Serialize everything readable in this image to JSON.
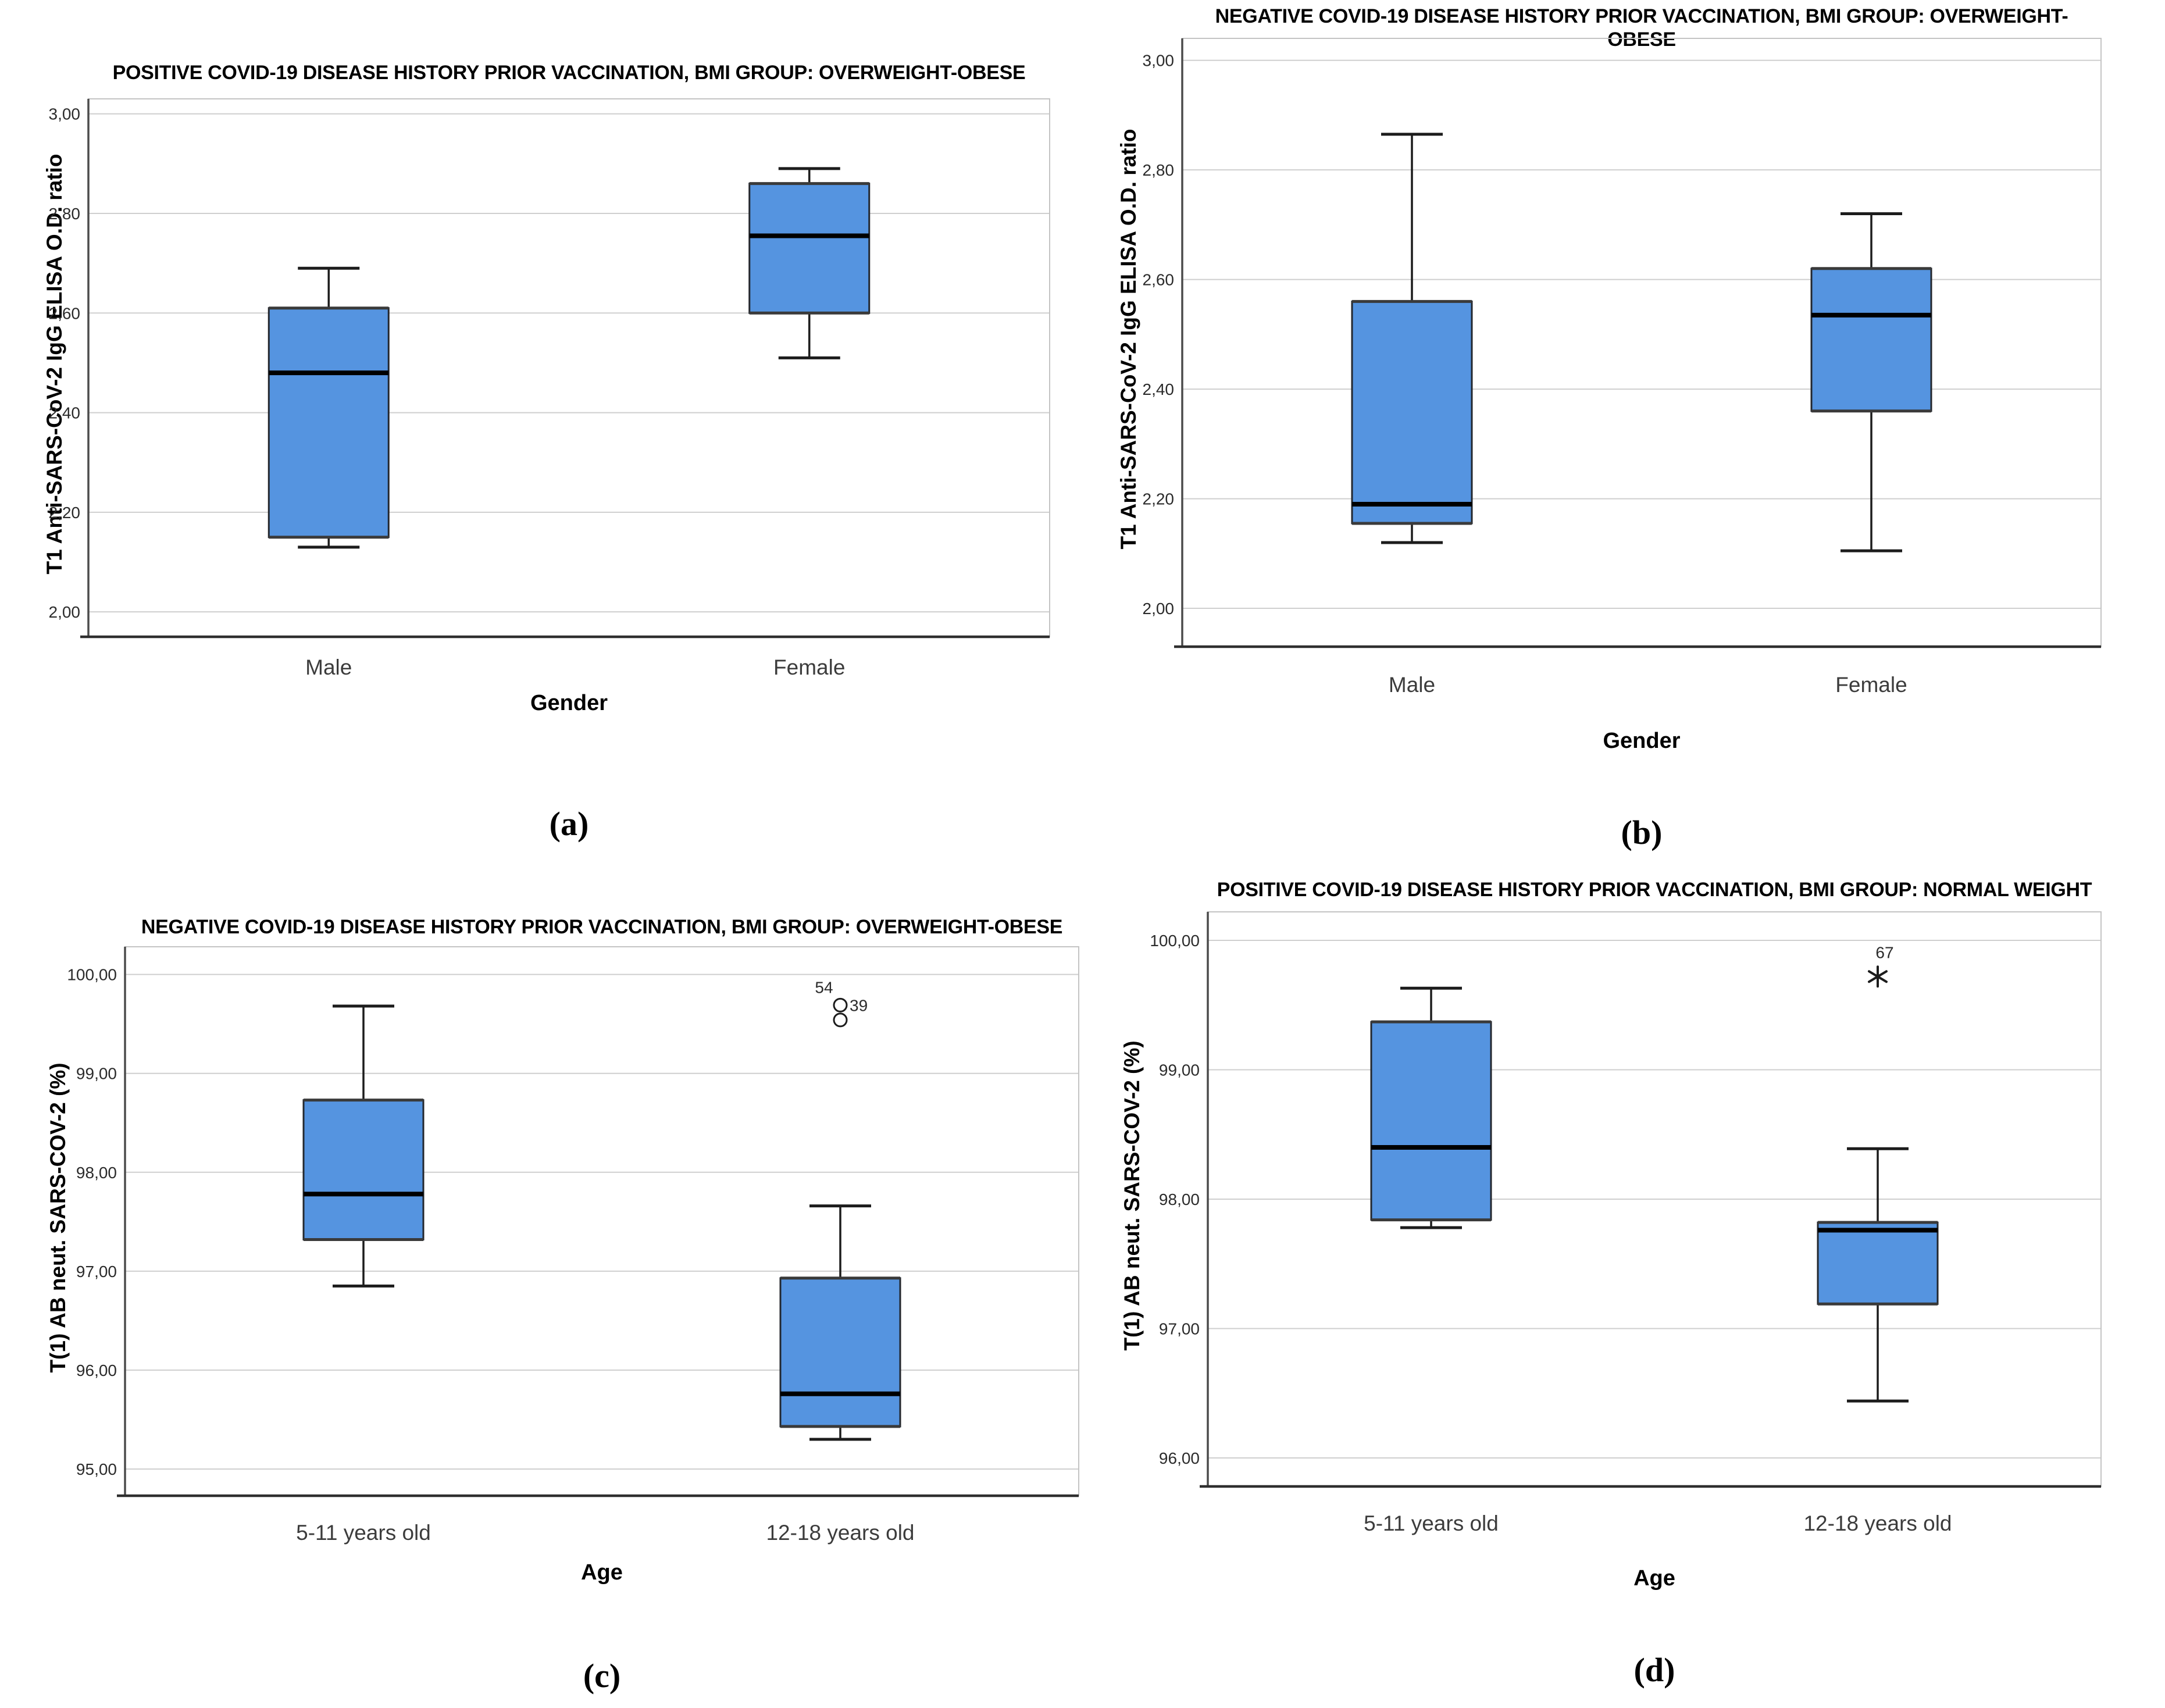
{
  "figure": {
    "background": "#ffffff",
    "description": "Four SPSS-style box plots comparing SARS-CoV-2 antibody measures across gender and age groups"
  },
  "styles": {
    "box_fill": "#5594E0",
    "box_border": "#23272E",
    "hinge_line": "#3A3A3A",
    "median_line": "#000000",
    "whisker_line": "#1C1C1C",
    "gridline": "#CFCFCF",
    "frame": "#C4C4C4",
    "y_axis_line": "#4B4B4B",
    "x_axis_line": "#2E2E2E",
    "tick_text": "#2B2B2B",
    "category_text": "#3C3C3C",
    "outlier_stroke": "#1C1C1C",
    "outlier_fill": "#FFFFFF"
  },
  "chart_data": [
    {
      "id": "a",
      "type": "box",
      "caption": "(a)",
      "title": "POSITIVE COVID-19 DISEASE HISTORY PRIOR VACCINATION, BMI GROUP: OVERWEIGHT-OBESE",
      "xlabel": "Gender",
      "ylabel": "T1 Anti-SARS-CoV-2 IgG ELISA O.D. ratio",
      "ylim": [
        1.95,
        3.03
      ],
      "grid": true,
      "yticks": [
        {
          "value": 3.0,
          "label": "3,00"
        },
        {
          "value": 2.8,
          "label": "2,80"
        },
        {
          "value": 2.6,
          "label": "2,60"
        },
        {
          "value": 2.4,
          "label": "2,40"
        },
        {
          "value": 2.2,
          "label": "2,20"
        },
        {
          "value": 2.0,
          "label": "2,00"
        }
      ],
      "categories": [
        "Male",
        "Female"
      ],
      "boxes": [
        {
          "category": "Male",
          "whisker_low": 2.13,
          "q1": 2.15,
          "median": 2.48,
          "q3": 2.61,
          "whisker_high": 2.69,
          "outliers": []
        },
        {
          "category": "Female",
          "whisker_low": 2.51,
          "q1": 2.6,
          "median": 2.755,
          "q3": 2.86,
          "whisker_high": 2.89,
          "outliers": []
        }
      ],
      "annotations": []
    },
    {
      "id": "b",
      "type": "box",
      "caption": "(b)",
      "title": "NEGATIVE COVID-19 DISEASE HISTORY PRIOR VACCINATION, BMI GROUP: OVERWEIGHT-OBESE",
      "xlabel": "Gender",
      "ylabel": "T1 Anti-SARS-CoV-2 IgG ELISA O.D. ratio",
      "ylim": [
        1.93,
        3.04
      ],
      "grid": true,
      "yticks": [
        {
          "value": 3.0,
          "label": "3,00"
        },
        {
          "value": 2.8,
          "label": "2,80"
        },
        {
          "value": 2.6,
          "label": "2,60"
        },
        {
          "value": 2.4,
          "label": "2,40"
        },
        {
          "value": 2.2,
          "label": "2,20"
        },
        {
          "value": 2.0,
          "label": "2,00"
        }
      ],
      "categories": [
        "Male",
        "Female"
      ],
      "boxes": [
        {
          "category": "Male",
          "whisker_low": 2.12,
          "q1": 2.155,
          "median": 2.19,
          "q3": 2.56,
          "whisker_high": 2.865,
          "outliers": []
        },
        {
          "category": "Female",
          "whisker_low": 2.105,
          "q1": 2.36,
          "median": 2.535,
          "q3": 2.62,
          "whisker_high": 2.72,
          "outliers": []
        }
      ],
      "annotations": []
    },
    {
      "id": "c",
      "type": "box",
      "caption": "(c)",
      "title": "NEGATIVE COVID-19 DISEASE HISTORY PRIOR VACCINATION, BMI GROUP: OVERWEIGHT-OBESE",
      "xlabel": "Age",
      "ylabel": "T(1) AB neut. SARS-COV-2 (%)",
      "ylim": [
        94.73,
        100.28
      ],
      "grid": true,
      "yticks": [
        {
          "value": 100.0,
          "label": "100,00"
        },
        {
          "value": 99.0,
          "label": "99,00"
        },
        {
          "value": 98.0,
          "label": "98,00"
        },
        {
          "value": 97.0,
          "label": "97,00"
        },
        {
          "value": 96.0,
          "label": "96,00"
        },
        {
          "value": 95.0,
          "label": "95,00"
        }
      ],
      "categories": [
        "5-11 years old",
        "12-18 years old"
      ],
      "boxes": [
        {
          "category": "5-11 years old",
          "whisker_low": 96.85,
          "q1": 97.32,
          "median": 97.78,
          "q3": 98.73,
          "whisker_high": 99.68,
          "outliers": []
        },
        {
          "category": "12-18 years old",
          "whisker_low": 95.3,
          "q1": 95.43,
          "median": 95.76,
          "q3": 96.93,
          "whisker_high": 97.66,
          "outliers": [
            {
              "value": 99.69,
              "marker": "circle",
              "label": "39",
              "label_side": "right"
            },
            {
              "value": 99.54,
              "marker": "circle",
              "label": "",
              "label_side": "right"
            }
          ]
        }
      ],
      "annotations": [
        {
          "text": "54",
          "category_index": 1,
          "value": 99.87,
          "dx": -28
        }
      ]
    },
    {
      "id": "d",
      "type": "box",
      "caption": "(d)",
      "title": "POSITIVE COVID-19 DISEASE HISTORY PRIOR VACCINATION, BMI GROUP: NORMAL WEIGHT",
      "xlabel": "Age",
      "ylabel": "T(1) AB neut. SARS-COV-2 (%)",
      "ylim": [
        95.78,
        100.22
      ],
      "grid": true,
      "yticks": [
        {
          "value": 100.0,
          "label": "100,00"
        },
        {
          "value": 99.0,
          "label": "99,00"
        },
        {
          "value": 98.0,
          "label": "98,00"
        },
        {
          "value": 97.0,
          "label": "97,00"
        },
        {
          "value": 96.0,
          "label": "96,00"
        }
      ],
      "categories": [
        "5-11 years old",
        "12-18 years old"
      ],
      "boxes": [
        {
          "category": "5-11 years old",
          "whisker_low": 97.78,
          "q1": 97.84,
          "median": 98.4,
          "q3": 99.37,
          "whisker_high": 99.63,
          "outliers": []
        },
        {
          "category": "12-18 years old",
          "whisker_low": 96.44,
          "q1": 97.19,
          "median": 97.76,
          "q3": 97.82,
          "whisker_high": 98.39,
          "outliers": [
            {
              "value": 99.72,
              "marker": "star",
              "label": "67",
              "label_side": "above"
            }
          ]
        }
      ],
      "annotations": []
    }
  ]
}
